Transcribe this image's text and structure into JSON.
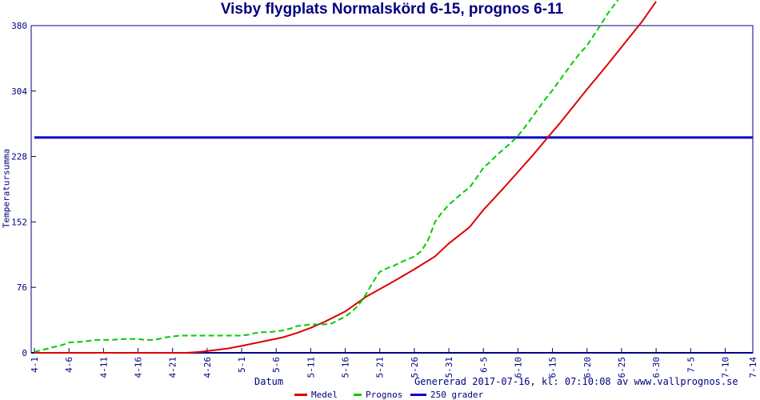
{
  "title": "Visby flygplats Normalskörd 6-15, prognos 6-11",
  "footer": {
    "generated": "Genererad 2017-07-16, kl: 07:10:08 av www.vallprognos.se"
  },
  "colors": {
    "frame_and_text": "#000080",
    "medel": "#dd0000",
    "prognos": "#00cc00",
    "threshold": "#0000cc",
    "background": "#ffffff"
  },
  "chart_data": {
    "type": "line",
    "title": "Visby flygplats Normalskörd 6-15, prognos 6-11",
    "xlabel": "Datum",
    "ylabel": "Temperatursumma",
    "ylim": [
      0,
      380
    ],
    "xlim_days": [
      0,
      104
    ],
    "y_ticks": [
      0,
      76,
      152,
      228,
      304,
      380
    ],
    "x_tick_labels": [
      "4-1",
      "4-6",
      "4-11",
      "4-16",
      "4-21",
      "4-26",
      "5-1",
      "5-6",
      "5-11",
      "5-16",
      "5-21",
      "5-26",
      "5-31",
      "6-5",
      "6-10",
      "6-15",
      "6-20",
      "6-25",
      "6-30",
      "7-5",
      "7-10",
      "7-14"
    ],
    "x_tick_days": [
      0,
      5,
      10,
      15,
      20,
      25,
      30,
      35,
      40,
      45,
      50,
      55,
      60,
      65,
      70,
      75,
      80,
      85,
      90,
      95,
      100,
      104
    ],
    "grid": false,
    "legend_position": "bottom-center",
    "frame_color": "#000080",
    "series": [
      {
        "name": "Medel",
        "color": "#dd0000",
        "style": "solid",
        "points": [
          [
            0,
            0
          ],
          [
            5,
            0
          ],
          [
            10,
            0
          ],
          [
            15,
            0
          ],
          [
            20,
            0
          ],
          [
            22,
            0
          ],
          [
            24,
            1
          ],
          [
            26,
            3
          ],
          [
            28,
            5
          ],
          [
            30,
            8
          ],
          [
            33,
            13
          ],
          [
            36,
            18
          ],
          [
            38,
            23
          ],
          [
            40,
            29
          ],
          [
            42,
            36
          ],
          [
            45,
            48
          ],
          [
            48,
            65
          ],
          [
            50,
            74
          ],
          [
            52,
            83
          ],
          [
            55,
            97
          ],
          [
            58,
            112
          ],
          [
            60,
            127
          ],
          [
            63,
            146
          ],
          [
            65,
            166
          ],
          [
            68,
            192
          ],
          [
            70,
            210
          ],
          [
            72,
            228
          ],
          [
            74.3,
            250
          ],
          [
            76,
            266
          ],
          [
            78,
            286
          ],
          [
            80,
            306
          ],
          [
            83,
            335
          ],
          [
            85,
            355
          ],
          [
            88,
            385
          ],
          [
            90,
            408
          ]
        ]
      },
      {
        "name": "Prognos",
        "color": "#00cc00",
        "style": "dashed",
        "points": [
          [
            0,
            1
          ],
          [
            2,
            5
          ],
          [
            4,
            9
          ],
          [
            5,
            12
          ],
          [
            7,
            13
          ],
          [
            9,
            15
          ],
          [
            11,
            15
          ],
          [
            13,
            16
          ],
          [
            15,
            16
          ],
          [
            16,
            15
          ],
          [
            17,
            15
          ],
          [
            18,
            16
          ],
          [
            19,
            18
          ],
          [
            20,
            19
          ],
          [
            21,
            20
          ],
          [
            23,
            20
          ],
          [
            25,
            20
          ],
          [
            27,
            20
          ],
          [
            29,
            20
          ],
          [
            30,
            20
          ],
          [
            31,
            21
          ],
          [
            32,
            23
          ],
          [
            33,
            24
          ],
          [
            34,
            24
          ],
          [
            35,
            25
          ],
          [
            36,
            26
          ],
          [
            37,
            28
          ],
          [
            38,
            31
          ],
          [
            39,
            32
          ],
          [
            40,
            33
          ],
          [
            41,
            33
          ],
          [
            42,
            33
          ],
          [
            43,
            34
          ],
          [
            44,
            38
          ],
          [
            45,
            42
          ],
          [
            46,
            48
          ],
          [
            47,
            56
          ],
          [
            48,
            68
          ],
          [
            49,
            82
          ],
          [
            50,
            94
          ],
          [
            51,
            98
          ],
          [
            52,
            101
          ],
          [
            53,
            105
          ],
          [
            55,
            112
          ],
          [
            56,
            118
          ],
          [
            57,
            131
          ],
          [
            58,
            152
          ],
          [
            59,
            163
          ],
          [
            60,
            172
          ],
          [
            61,
            179
          ],
          [
            62,
            186
          ],
          [
            63,
            192
          ],
          [
            64,
            203
          ],
          [
            65,
            215
          ],
          [
            66,
            222
          ],
          [
            67,
            230
          ],
          [
            68,
            237
          ],
          [
            69,
            244
          ],
          [
            70,
            252
          ],
          [
            71,
            262
          ],
          [
            72,
            273
          ],
          [
            73,
            284
          ],
          [
            74,
            295
          ],
          [
            75,
            305
          ],
          [
            76,
            316
          ],
          [
            77,
            327
          ],
          [
            78,
            338
          ],
          [
            79,
            348
          ],
          [
            80,
            357
          ],
          [
            81,
            369
          ],
          [
            82,
            381
          ],
          [
            83,
            394
          ],
          [
            84.5,
            410
          ]
        ]
      },
      {
        "name": "250 grader",
        "color": "#0000cc",
        "style": "solid",
        "threshold_value": 250,
        "points": [
          [
            0,
            250
          ],
          [
            104,
            250
          ]
        ]
      }
    ]
  }
}
